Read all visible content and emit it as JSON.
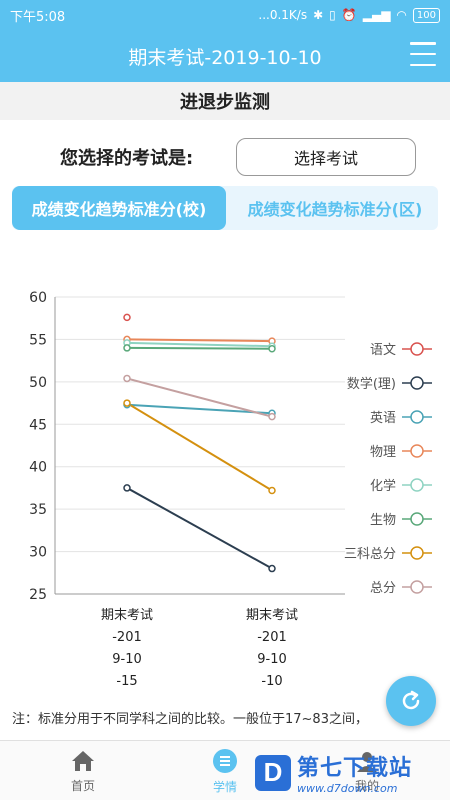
{
  "status_bar": {
    "time": "下午5:08",
    "network_speed": "...0.1K/s",
    "battery": "100",
    "icons": [
      "bluetooth-icon",
      "vibrate-icon",
      "alarm-icon",
      "signal-icon",
      "wifi-icon",
      "battery-icon"
    ]
  },
  "header": {
    "title": "期末考试-2019-10-10",
    "menu_icon": "hamburger-menu-icon"
  },
  "section": {
    "title": "进退步监测"
  },
  "exam_select": {
    "label": "您选择的考试是:",
    "button_label": "选择考试"
  },
  "tabs": [
    {
      "label": "成绩变化趋势标准分(校)",
      "active": true
    },
    {
      "label": "成绩变化趋势标准分(区)",
      "active": false
    }
  ],
  "chart_data": {
    "type": "line",
    "categories": [
      "期末考试-2019-10-15",
      "期末考试-2019-10-10"
    ],
    "x_tick_lines": [
      [
        "期末考试",
        "-201",
        "9-10",
        "-15"
      ],
      [
        "期末考试",
        "-201",
        "9-10",
        "-10"
      ]
    ],
    "ylim": [
      25,
      60
    ],
    "yticks": [
      25,
      30,
      35,
      40,
      45,
      50,
      55,
      60
    ],
    "grid": true,
    "legend_position": "right",
    "series": [
      {
        "name": "语文",
        "color": "#d9534f",
        "values": [
          57.6,
          null
        ]
      },
      {
        "name": "数学(理)",
        "color": "#2c3e50",
        "values": [
          37.5,
          28.0
        ]
      },
      {
        "name": "英语",
        "color": "#4aa3b5",
        "values": [
          47.3,
          46.3
        ]
      },
      {
        "name": "物理",
        "color": "#e8875a",
        "values": [
          55.0,
          54.8
        ]
      },
      {
        "name": "化学",
        "color": "#8fd3c2",
        "values": [
          54.6,
          54.2
        ]
      },
      {
        "name": "生物",
        "color": "#5aa87a",
        "values": [
          54.0,
          53.9
        ]
      },
      {
        "name": "三科总分",
        "color": "#d4900f",
        "values": [
          47.5,
          37.2
        ]
      },
      {
        "name": "总分",
        "color": "#c4a0a0",
        "values": [
          50.4,
          45.9
        ]
      }
    ]
  },
  "note": {
    "text": "注：标准分用于不同学科之间的比较。一般位于17~83之间，"
  },
  "fab": {
    "icon": "refresh-icon"
  },
  "bottom_nav": [
    {
      "label": "首页",
      "icon": "home-icon",
      "active": false
    },
    {
      "label": "学情",
      "icon": "list-icon",
      "active": true
    },
    {
      "label": "我的",
      "icon": "user-icon",
      "active": false
    }
  ],
  "watermark": {
    "logo": "D",
    "title": "第七下载站",
    "url": "www.d7down.com"
  },
  "colors": {
    "brand": "#5bc2f0"
  }
}
